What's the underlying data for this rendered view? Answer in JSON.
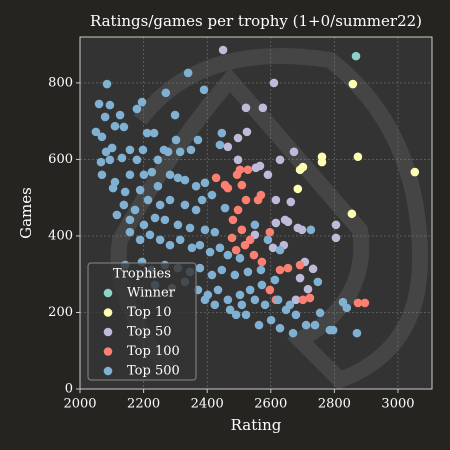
{
  "chart_data": {
    "type": "scatter",
    "title": "Ratings/games per trophy (1+0/summer22)",
    "x_label": "Rating",
    "y_label": "Games",
    "xlim": [
      2000,
      3107
    ],
    "ylim": [
      0,
      920
    ],
    "xticks": [
      2000,
      2200,
      2400,
      2600,
      2800,
      3000
    ],
    "yticks": [
      0,
      200,
      400,
      600,
      800
    ],
    "grid": true,
    "legend_title": "Trophies",
    "legend_position": "lower left",
    "series": [
      {
        "name": "Winner",
        "color": "#8dd3c7",
        "x": [
          2868
        ],
        "y": [
          870
        ]
      },
      {
        "name": "Top 10",
        "color": "#ffffb3",
        "x": [
          2858,
          2874,
          2761,
          2761,
          3053,
          2692,
          2701,
          2685,
          2855
        ],
        "y": [
          797,
          607,
          607,
          593,
          567,
          573,
          580,
          523,
          458
        ]
      },
      {
        "name": "Top 50",
        "color": "#bebada",
        "x": [
          2450,
          2610,
          2522,
          2575,
          2525,
          2497,
          2465,
          2497,
          2673,
          2629,
          2566,
          2553,
          2591,
          2663,
          2616,
          2645,
          2654,
          2685,
          2698,
          2616,
          2805,
          2805,
          2607,
          2641,
          2707,
          2733,
          2692,
          2717,
          2679,
          2550
        ],
        "y": [
          886,
          800,
          735,
          735,
          672,
          656,
          633,
          599,
          620,
          599,
          583,
          578,
          560,
          489,
          494,
          442,
          437,
          421,
          416,
          434,
          429,
          395,
          369,
          376,
          332,
          314,
          290,
          261,
          233,
          403
        ]
      },
      {
        "name": "Top 100",
        "color": "#fb8072",
        "x": [
          2428,
          2456,
          2465,
          2494,
          2503,
          2509,
          2528,
          2560,
          2569,
          2522,
          2497,
          2481,
          2509,
          2478,
          2535,
          2519,
          2491,
          2547,
          2597,
          2572,
          2629,
          2654,
          2692,
          2723,
          2701,
          2874,
          2896,
          2597,
          2616
        ],
        "y": [
          552,
          533,
          525,
          560,
          573,
          533,
          573,
          494,
          507,
          494,
          468,
          442,
          416,
          395,
          390,
          376,
          363,
          350,
          410,
          332,
          311,
          316,
          324,
          238,
          233,
          225,
          225,
          259,
          233
        ]
      },
      {
        "name": "Top 500",
        "color": "#80b1d3",
        "x": [
          2085,
          2340,
          2060,
          2094,
          2195,
          2270,
          2390,
          2079,
          2126,
          2179,
          2050,
          2110,
          2138,
          2211,
          2233,
          2299,
          2302,
          2069,
          2082,
          2101,
          2157,
          2198,
          2264,
          2349,
          2371,
          2315,
          2066,
          2094,
          2132,
          2179,
          2245,
          2277,
          2069,
          2110,
          2157,
          2201,
          2226,
          2283,
          2308,
          2330,
          2365,
          2393,
          2104,
          2142,
          2189,
          2245,
          2384,
          2415,
          2138,
          2173,
          2214,
          2252,
          2283,
          2330,
          2365,
          2456,
          2116,
          2157,
          2201,
          2236,
          2267,
          2308,
          2346,
          2393,
          2424,
          2440,
          2446,
          2157,
          2189,
          2220,
          2252,
          2283,
          2315,
          2352,
          2377,
          2409,
          2440,
          2465,
          2503,
          2550,
          2142,
          2195,
          2226,
          2267,
          2308,
          2346,
          2377,
          2415,
          2446,
          2487,
          2528,
          2569,
          2236,
          2289,
          2330,
          2371,
          2402,
          2434,
          2465,
          2503,
          2535,
          2572,
          2613,
          2393,
          2424,
          2472,
          2509,
          2550,
          2582,
          2623,
          2660,
          2491,
          2522,
          2563,
          2601,
          2629,
          2670,
          2679,
          2711,
          2739,
          2786,
          2796,
          2827,
          2839,
          2871,
          2755,
          2648,
          2748,
          2726,
          2629,
          2591
        ],
        "y": [
          797,
          826,
          745,
          742,
          750,
          774,
          782,
          711,
          716,
          732,
          672,
          687,
          685,
          669,
          669,
          716,
          651,
          659,
          620,
          630,
          625,
          625,
          625,
          625,
          651,
          620,
          593,
          599,
          604,
          599,
          599,
          620,
          560,
          541,
          560,
          560,
          567,
          560,
          552,
          546,
          530,
          539,
          525,
          515,
          520,
          530,
          494,
          507,
          481,
          468,
          494,
          481,
          494,
          481,
          468,
          473,
          455,
          442,
          429,
          447,
          442,
          429,
          421,
          416,
          410,
          638,
          669,
          410,
          390,
          403,
          390,
          376,
          390,
          369,
          376,
          358,
          369,
          350,
          342,
          429,
          324,
          332,
          311,
          324,
          316,
          306,
          316,
          298,
          311,
          298,
          306,
          311,
          272,
          264,
          280,
          259,
          246,
          259,
          233,
          246,
          259,
          272,
          285,
          233,
          220,
          207,
          220,
          233,
          220,
          233,
          220,
          194,
          194,
          167,
          180,
          159,
          146,
          194,
          167,
          167,
          154,
          154,
          227,
          212,
          146,
          199,
          207,
          280,
          416,
          363,
          390
        ]
      }
    ]
  }
}
